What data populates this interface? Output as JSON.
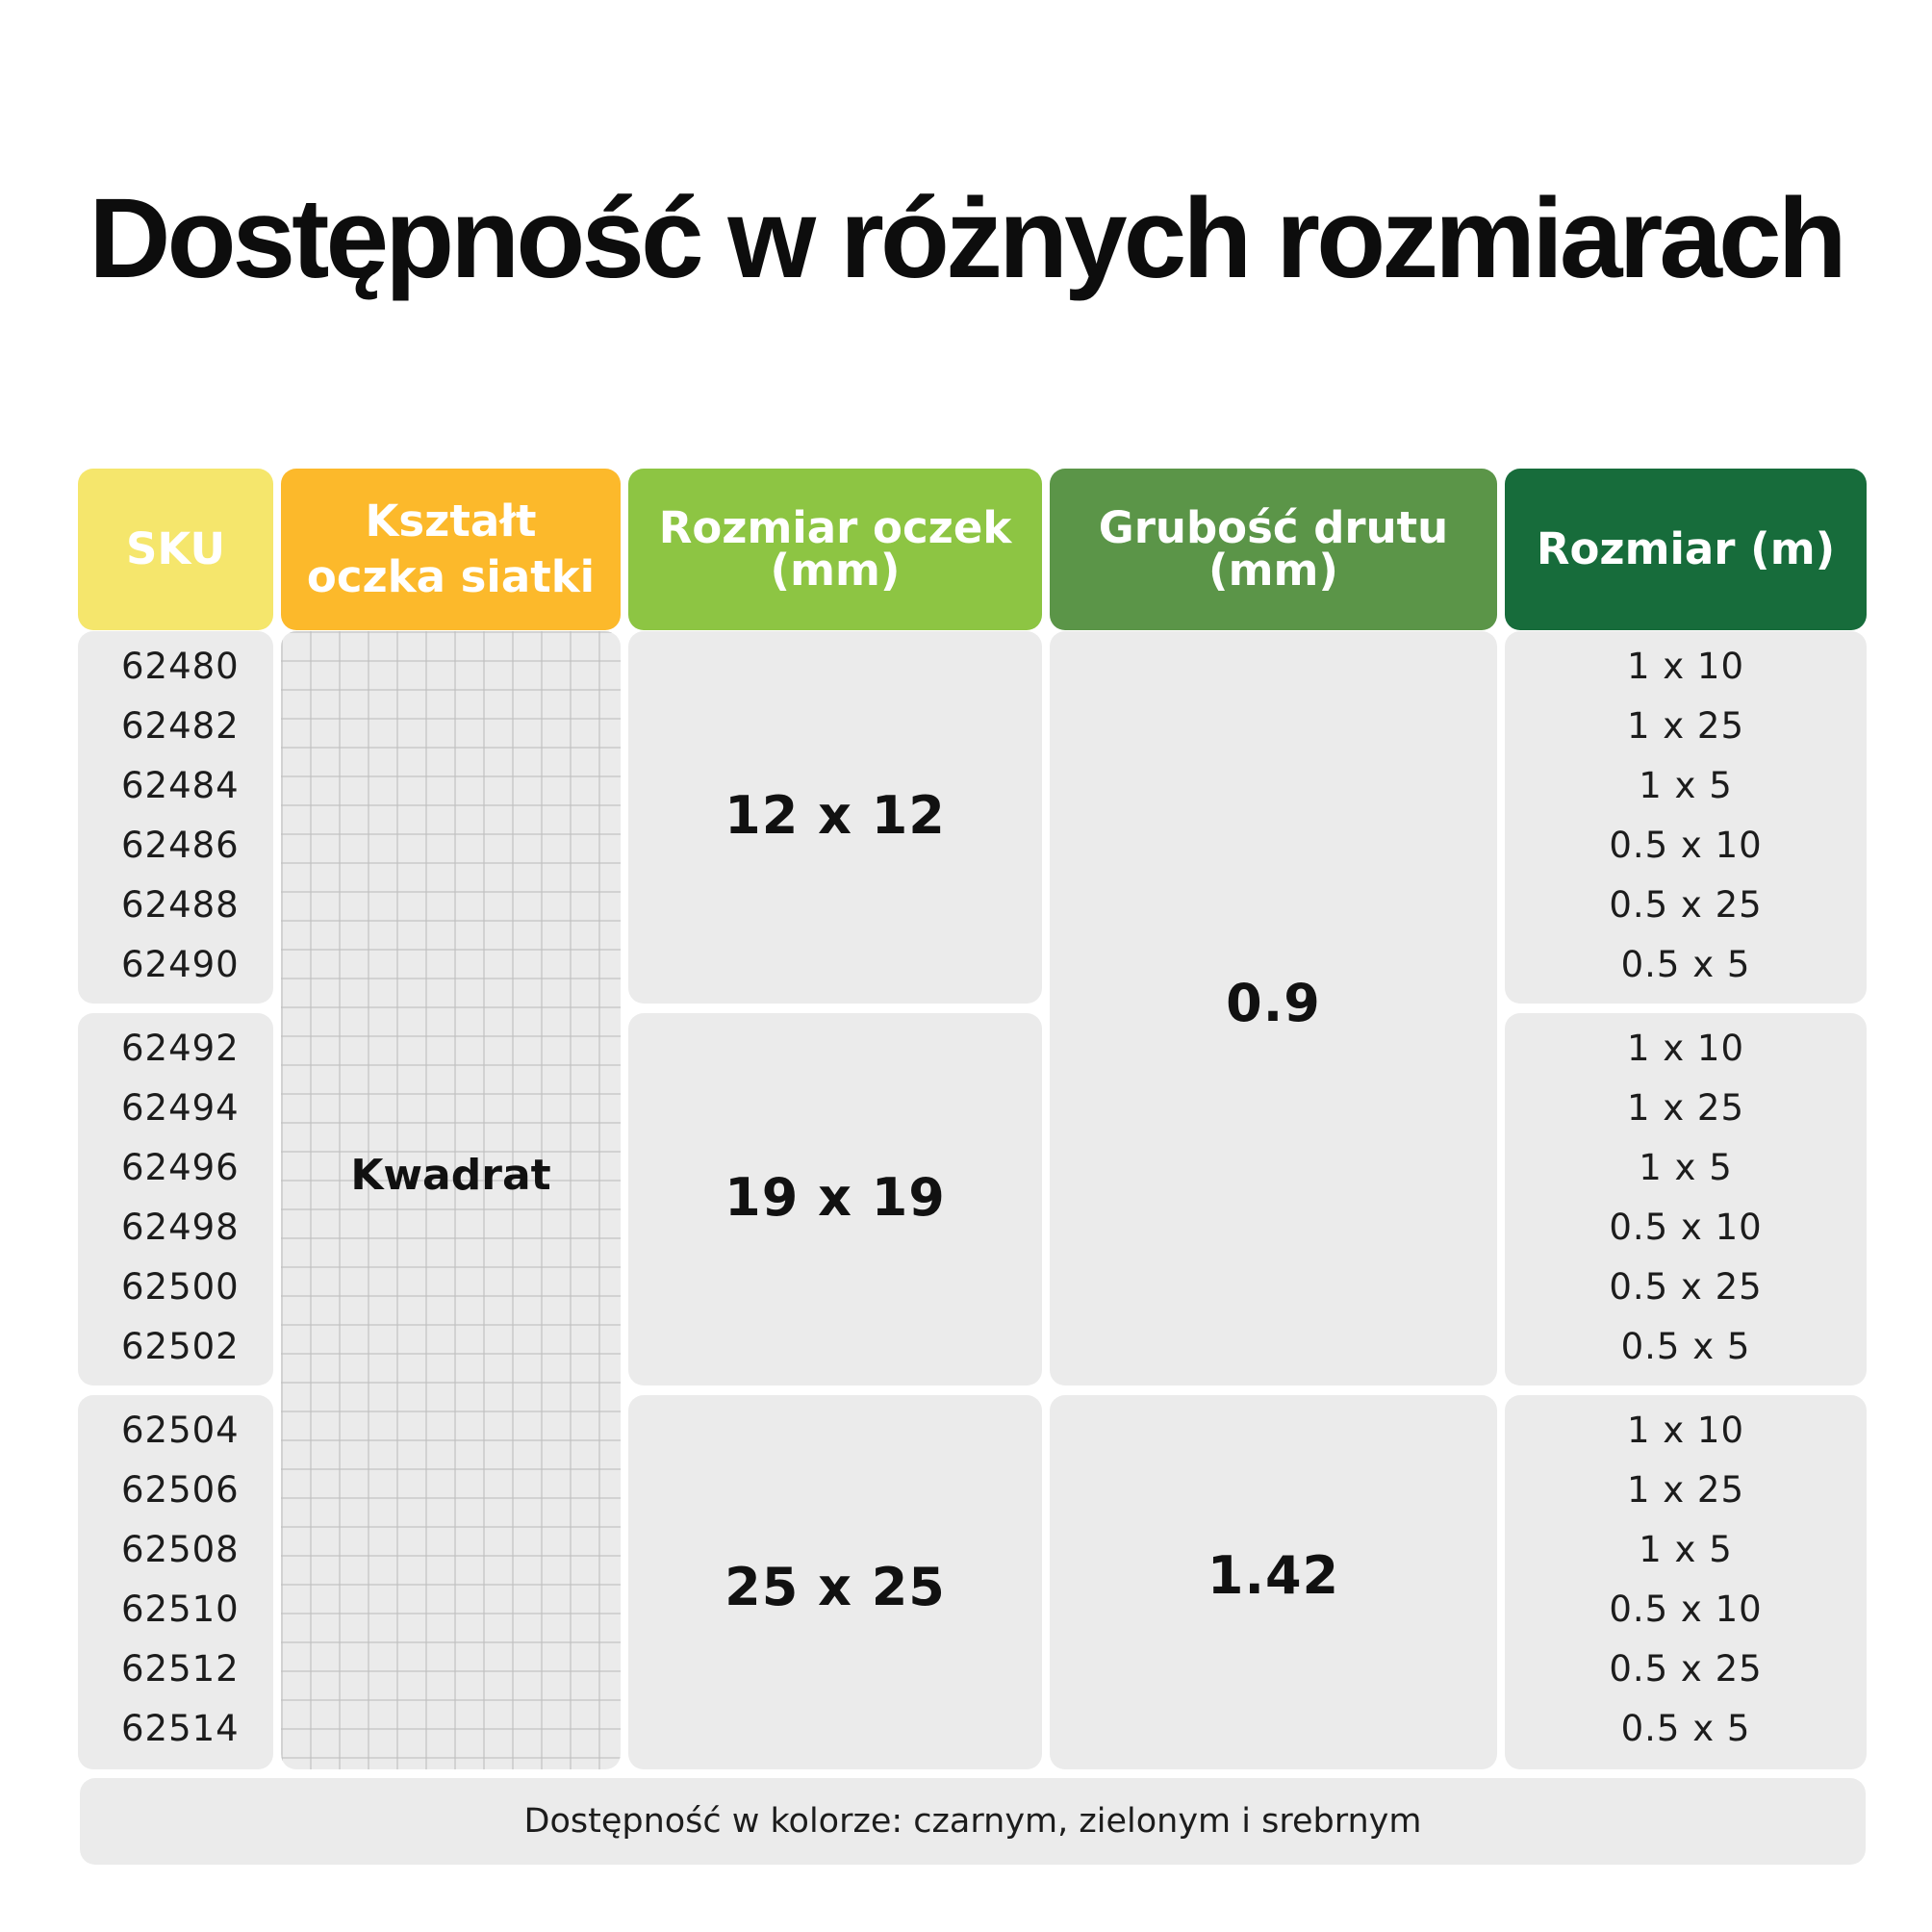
{
  "title": "Dostępność w różnych rozmiarach",
  "headers": {
    "sku": "SKU",
    "shape_line1": "Kształt",
    "shape_line2": "oczka siatki",
    "mesh_line1": "Rozmiar oczek",
    "mesh_line2": "(mm)",
    "wire_line1": "Grubość drutu",
    "wire_line2": "(mm)",
    "size": "Rozmiar (m)"
  },
  "colors": {
    "sku_header": "#f5e66c",
    "shape_header": "#fcb92b",
    "mesh_header": "#8dc543",
    "wire_header": "#5b9548",
    "size_header": "#176c3b",
    "cell_bg": "#ebebeb"
  },
  "shape_value": "Kwadrat",
  "groups": [
    {
      "skus": [
        "62480",
        "62482",
        "62484",
        "62486",
        "62488",
        "62490"
      ],
      "mesh": "12 x 12",
      "sizes": [
        "1 x 10",
        "1 x 25",
        "1 x 5",
        "0.5 x 10",
        "0.5 x 25",
        "0.5 x 5"
      ]
    },
    {
      "skus": [
        "62492",
        "62494",
        "62496",
        "62498",
        "62500",
        "62502"
      ],
      "mesh": "19 x 19",
      "sizes": [
        "1 x 10",
        "1 x 25",
        "1 x 5",
        "0.5 x 10",
        "0.5 x 25",
        "0.5 x 5"
      ]
    },
    {
      "skus": [
        "62504",
        "62506",
        "62508",
        "62510",
        "62512",
        "62514"
      ],
      "mesh": "25 x 25",
      "sizes": [
        "1 x 10",
        "1 x 25",
        "1 x 5",
        "0.5 x 10",
        "0.5 x 25",
        "0.5 x 5"
      ]
    }
  ],
  "wire_values": [
    "0.9",
    "1.42"
  ],
  "footer": "Dostępność w kolorze: czarnym, zielonym i srebrnym"
}
